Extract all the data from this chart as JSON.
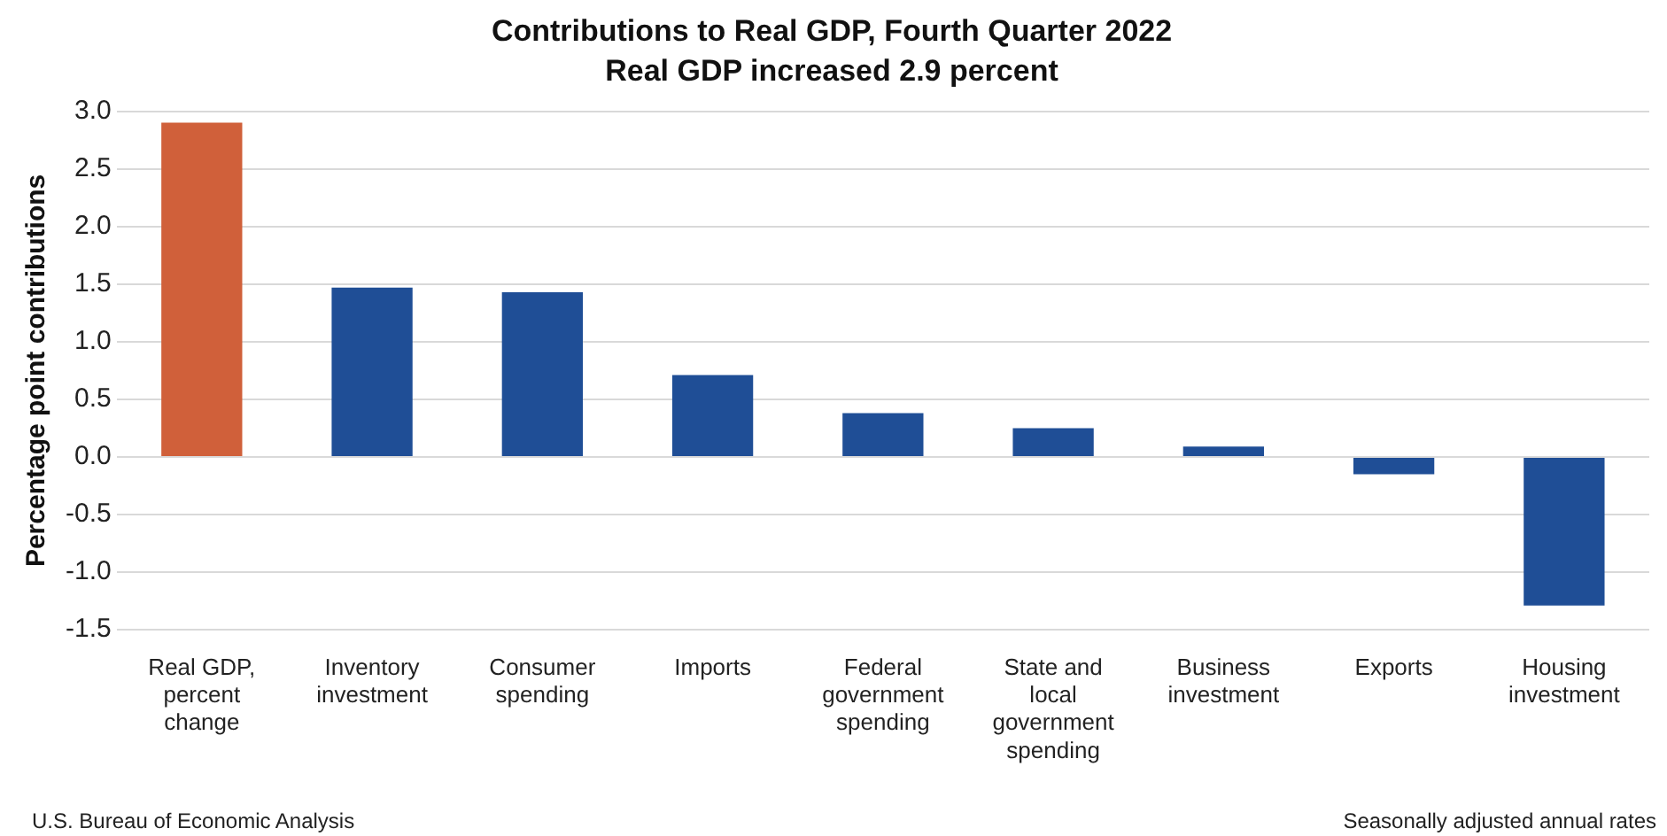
{
  "chart_data": {
    "type": "bar",
    "title": "Contributions to Real GDP, Fourth Quarter 2022",
    "subtitle": "Real GDP increased 2.9 percent",
    "ylabel": "Percentage point contributions",
    "categories": [
      "Real GDP, percent change",
      "Inventory investment",
      "Consumer spending",
      "Imports",
      "Federal government spending",
      "State and local government spending",
      "Business investment",
      "Exports",
      "Housing investment"
    ],
    "values": [
      2.9,
      1.47,
      1.43,
      0.71,
      0.38,
      0.25,
      0.09,
      -0.15,
      -1.29
    ],
    "colors": [
      "#d0603a",
      "#1f4e96",
      "#1f4e96",
      "#1f4e96",
      "#1f4e96",
      "#1f4e96",
      "#1f4e96",
      "#1f4e96",
      "#1f4e96"
    ],
    "ylim": [
      -1.5,
      3.0
    ],
    "yticks": [
      {
        "value": -1.5,
        "label": "-1.5"
      },
      {
        "value": -1,
        "label": "-1.0"
      },
      {
        "value": -0.5,
        "label": "-0.5"
      },
      {
        "value": 0,
        "label": "0.0"
      },
      {
        "value": 0.5,
        "label": "0.5"
      },
      {
        "value": 1,
        "label": "1.0"
      },
      {
        "value": 1.5,
        "label": "1.5"
      },
      {
        "value": 2,
        "label": "2.0"
      },
      {
        "value": 2.5,
        "label": "2.5"
      },
      {
        "value": 3,
        "label": "3.0"
      }
    ],
    "grid": "y",
    "legend": false,
    "annotations": [
      "U.S. Bureau of Economic Analysis",
      "Seasonally adjusted annual rates"
    ]
  }
}
